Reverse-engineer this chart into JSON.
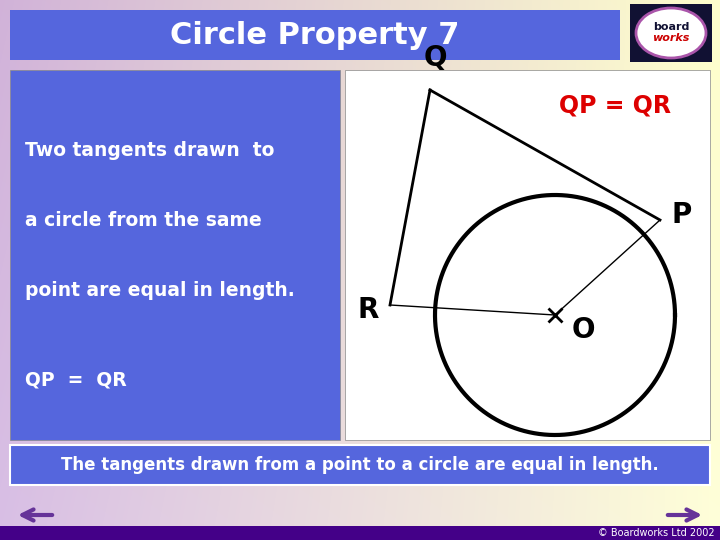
{
  "title": "Circle Property 7",
  "title_bg": "#5566dd",
  "title_color": "white",
  "title_fontsize": 22,
  "bg_color_left": "#cc99cc",
  "bg_color_right": "#ffffcc",
  "left_box_bg": "#5566dd",
  "left_box_text": [
    "Two tangents drawn  to",
    "a circle from the same",
    "point are equal in length.",
    "QP  =  QR"
  ],
  "left_box_color": "white",
  "right_box_bg": "#ffffff",
  "equation_text": "QP = QR",
  "equation_color": "#dd0000",
  "bottom_text": "The tangents drawn from a point to a circle are equal in length.",
  "bottom_bg": "#5566dd",
  "bottom_color": "white",
  "bottom_border": "#ffffff",
  "copyright": "© Boardworks Ltd 2002",
  "nav_color": "#663399",
  "logo_bg": "#111133",
  "logo_border": "#aa55aa"
}
